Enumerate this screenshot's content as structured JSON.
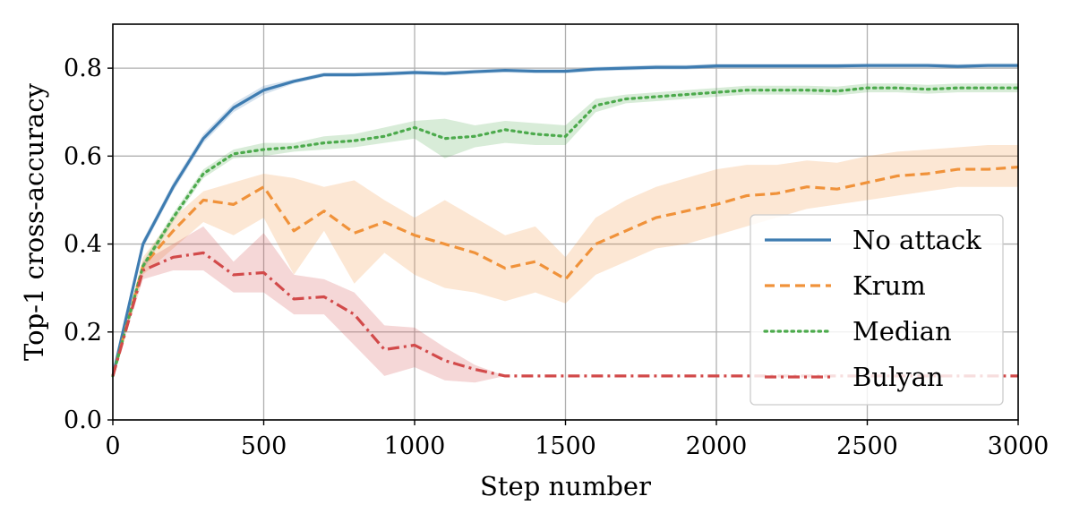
{
  "chart_data": {
    "type": "line",
    "title": "",
    "xlabel": "Step number",
    "ylabel": "Top-1 cross-accuracy",
    "xlim": [
      0,
      3000
    ],
    "ylim": [
      0,
      0.9
    ],
    "xticks": [
      0,
      500,
      1000,
      1500,
      2000,
      2500,
      3000
    ],
    "xtick_labels": [
      "0",
      "500",
      "1000",
      "1500",
      "2000",
      "2500",
      "3000"
    ],
    "yticks": [
      0.0,
      0.2,
      0.4,
      0.6,
      0.8
    ],
    "ytick_labels": [
      "0.0",
      "0.2",
      "0.4",
      "0.6",
      "0.8"
    ],
    "grid": true,
    "legend_position": "lower-right",
    "x": [
      0,
      100,
      200,
      300,
      400,
      500,
      600,
      700,
      800,
      900,
      1000,
      1100,
      1200,
      1300,
      1400,
      1500,
      1600,
      1700,
      1800,
      1900,
      2000,
      2100,
      2200,
      2300,
      2400,
      2500,
      2600,
      2700,
      2800,
      2900,
      3000
    ],
    "series": [
      {
        "name": "No attack",
        "color": "#3e7cb1",
        "dash": "solid",
        "values": [
          0.1,
          0.4,
          0.53,
          0.64,
          0.71,
          0.75,
          0.77,
          0.785,
          0.785,
          0.787,
          0.79,
          0.788,
          0.792,
          0.795,
          0.793,
          0.793,
          0.798,
          0.8,
          0.802,
          0.802,
          0.805,
          0.805,
          0.805,
          0.805,
          0.805,
          0.806,
          0.806,
          0.806,
          0.804,
          0.806,
          0.806
        ],
        "lower": [
          0.1,
          0.39,
          0.52,
          0.63,
          0.7,
          0.74,
          0.765,
          0.78,
          0.78,
          0.782,
          0.785,
          0.783,
          0.787,
          0.79,
          0.788,
          0.788,
          0.793,
          0.795,
          0.797,
          0.797,
          0.8,
          0.8,
          0.8,
          0.8,
          0.8,
          0.801,
          0.801,
          0.801,
          0.799,
          0.801,
          0.801
        ],
        "upper": [
          0.1,
          0.41,
          0.54,
          0.65,
          0.72,
          0.76,
          0.775,
          0.79,
          0.79,
          0.792,
          0.795,
          0.793,
          0.797,
          0.8,
          0.798,
          0.798,
          0.803,
          0.805,
          0.807,
          0.807,
          0.81,
          0.81,
          0.81,
          0.81,
          0.81,
          0.811,
          0.811,
          0.811,
          0.809,
          0.811,
          0.811
        ]
      },
      {
        "name": "Krum",
        "color": "#f0923a",
        "dash": "dashed",
        "values": [
          0.1,
          0.35,
          0.43,
          0.5,
          0.49,
          0.53,
          0.43,
          0.475,
          0.425,
          0.45,
          0.42,
          0.4,
          0.38,
          0.345,
          0.36,
          0.32,
          0.4,
          0.43,
          0.46,
          0.475,
          0.49,
          0.51,
          0.515,
          0.53,
          0.525,
          0.54,
          0.555,
          0.56,
          0.57,
          0.57,
          0.575
        ],
        "lower": [
          0.1,
          0.33,
          0.39,
          0.45,
          0.42,
          0.46,
          0.33,
          0.43,
          0.31,
          0.38,
          0.33,
          0.3,
          0.29,
          0.27,
          0.29,
          0.265,
          0.33,
          0.36,
          0.39,
          0.4,
          0.42,
          0.44,
          0.46,
          0.48,
          0.49,
          0.5,
          0.51,
          0.52,
          0.53,
          0.53,
          0.53
        ],
        "upper": [
          0.1,
          0.37,
          0.46,
          0.52,
          0.54,
          0.56,
          0.55,
          0.53,
          0.545,
          0.5,
          0.46,
          0.5,
          0.46,
          0.42,
          0.44,
          0.37,
          0.46,
          0.5,
          0.53,
          0.55,
          0.57,
          0.58,
          0.58,
          0.59,
          0.585,
          0.6,
          0.61,
          0.615,
          0.62,
          0.625,
          0.625
        ]
      },
      {
        "name": "Median",
        "color": "#4caa4c",
        "dash": "dotted",
        "values": [
          0.1,
          0.35,
          0.46,
          0.56,
          0.605,
          0.615,
          0.62,
          0.63,
          0.635,
          0.645,
          0.665,
          0.64,
          0.645,
          0.66,
          0.65,
          0.645,
          0.715,
          0.73,
          0.735,
          0.74,
          0.745,
          0.75,
          0.75,
          0.75,
          0.748,
          0.755,
          0.755,
          0.752,
          0.755,
          0.755,
          0.755
        ],
        "lower": [
          0.1,
          0.34,
          0.45,
          0.55,
          0.595,
          0.6,
          0.61,
          0.615,
          0.62,
          0.63,
          0.64,
          0.595,
          0.62,
          0.63,
          0.625,
          0.625,
          0.7,
          0.72,
          0.725,
          0.73,
          0.735,
          0.74,
          0.74,
          0.74,
          0.738,
          0.745,
          0.745,
          0.742,
          0.745,
          0.745,
          0.745
        ],
        "upper": [
          0.1,
          0.36,
          0.47,
          0.57,
          0.615,
          0.63,
          0.63,
          0.645,
          0.65,
          0.665,
          0.68,
          0.685,
          0.67,
          0.68,
          0.675,
          0.67,
          0.73,
          0.74,
          0.745,
          0.75,
          0.755,
          0.76,
          0.76,
          0.76,
          0.758,
          0.765,
          0.765,
          0.762,
          0.765,
          0.765,
          0.765
        ]
      },
      {
        "name": "Bulyan",
        "color": "#d24a4a",
        "dash": "dashdot",
        "values": [
          0.1,
          0.34,
          0.37,
          0.38,
          0.33,
          0.335,
          0.275,
          0.28,
          0.24,
          0.16,
          0.17,
          0.135,
          0.115,
          0.1,
          0.1,
          0.1,
          0.1,
          0.1,
          0.1,
          0.1,
          0.1,
          0.1,
          0.1,
          0.1,
          0.1,
          0.1,
          0.1,
          0.1,
          0.1,
          0.1,
          0.1
        ],
        "lower": [
          0.1,
          0.32,
          0.34,
          0.34,
          0.29,
          0.29,
          0.24,
          0.24,
          0.17,
          0.1,
          0.12,
          0.09,
          0.085,
          0.1,
          0.1,
          0.1,
          0.1,
          0.1,
          0.1,
          0.1,
          0.1,
          0.1,
          0.1,
          0.1,
          0.1,
          0.1,
          0.1,
          0.1,
          0.1,
          0.1,
          0.1
        ],
        "upper": [
          0.1,
          0.36,
          0.4,
          0.44,
          0.36,
          0.425,
          0.33,
          0.32,
          0.29,
          0.215,
          0.21,
          0.165,
          0.125,
          0.1,
          0.1,
          0.1,
          0.1,
          0.1,
          0.1,
          0.1,
          0.1,
          0.1,
          0.1,
          0.1,
          0.1,
          0.1,
          0.1,
          0.1,
          0.1,
          0.1,
          0.1
        ]
      }
    ]
  }
}
